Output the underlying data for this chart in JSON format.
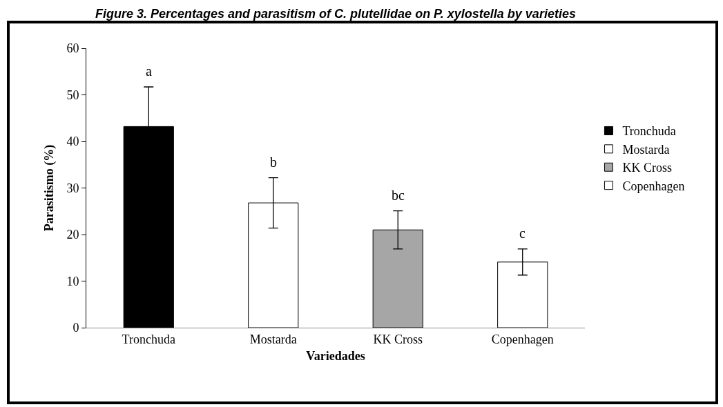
{
  "chart_data": {
    "type": "bar",
    "title": "Figure 3. Percentages and parasitism of C. plutellidae on P. xylostella by varieties",
    "xlabel": "Variedades",
    "ylabel": "Parasitismo (%)",
    "categories": [
      "Tronchuda",
      "Mostarda",
      "KK Cross",
      "Copenhagen"
    ],
    "series": [
      {
        "name": "Tronchuda",
        "color": "#000000",
        "values": [
          43.2,
          null,
          null,
          null
        ],
        "errors": [
          8.5,
          null,
          null,
          null
        ]
      },
      {
        "name": "Mostarda",
        "color": "#ffffff",
        "values": [
          null,
          26.8,
          null,
          null
        ],
        "errors": [
          null,
          5.4,
          null,
          null
        ]
      },
      {
        "name": "KK Cross",
        "color": "#a6a6a6",
        "values": [
          null,
          null,
          21,
          null
        ],
        "errors": [
          null,
          null,
          4.1,
          null
        ]
      },
      {
        "name": "Copenhagen",
        "color": "#ffffff",
        "values": [
          null,
          null,
          null,
          14.1
        ],
        "errors": [
          null,
          null,
          null,
          2.8
        ]
      }
    ],
    "ylim": [
      0,
      60
    ],
    "yticks": [
      0,
      10,
      20,
      30,
      40,
      50,
      60
    ],
    "annotations": [
      "a",
      "b",
      "bc",
      "c"
    ],
    "legend": "right"
  }
}
